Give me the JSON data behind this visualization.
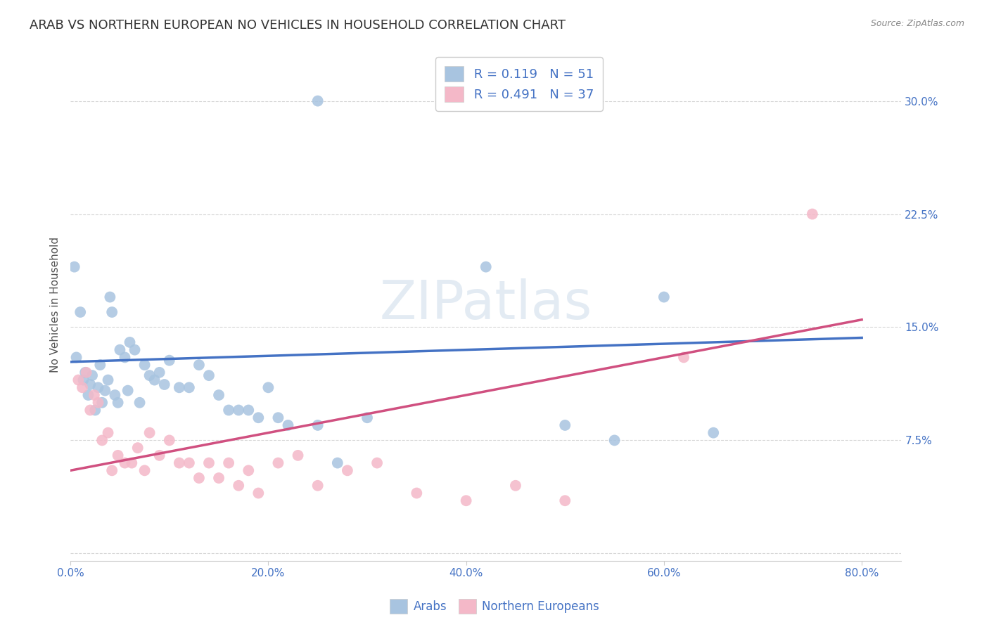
{
  "title": "ARAB VS NORTHERN EUROPEAN NO VEHICLES IN HOUSEHOLD CORRELATION CHART",
  "source": "Source: ZipAtlas.com",
  "ylabel": "No Vehicles in Household",
  "watermark": "ZIPatlas",
  "xlim": [
    0.0,
    0.84
  ],
  "ylim": [
    -0.005,
    0.335
  ],
  "xticks": [
    0.0,
    0.2,
    0.4,
    0.6,
    0.8
  ],
  "yticks": [
    0.0,
    0.075,
    0.15,
    0.225,
    0.3
  ],
  "arab_color": "#a8c4e0",
  "arab_color_line": "#4472c4",
  "northern_color": "#f4b8c8",
  "northern_color_line": "#d05080",
  "arab_R": 0.119,
  "arab_N": 51,
  "northern_R": 0.491,
  "northern_N": 37,
  "legend_label_arab": "Arabs",
  "legend_label_northern": "Northern Europeans",
  "arab_x": [
    0.004,
    0.006,
    0.01,
    0.013,
    0.015,
    0.018,
    0.02,
    0.022,
    0.025,
    0.028,
    0.03,
    0.032,
    0.035,
    0.038,
    0.04,
    0.042,
    0.045,
    0.048,
    0.05,
    0.055,
    0.058,
    0.06,
    0.065,
    0.07,
    0.075,
    0.08,
    0.085,
    0.09,
    0.095,
    0.1,
    0.11,
    0.12,
    0.13,
    0.14,
    0.15,
    0.16,
    0.17,
    0.18,
    0.19,
    0.2,
    0.21,
    0.22,
    0.25,
    0.27,
    0.3,
    0.42,
    0.5,
    0.55,
    0.6,
    0.65,
    0.25
  ],
  "arab_y": [
    0.19,
    0.13,
    0.16,
    0.115,
    0.12,
    0.105,
    0.112,
    0.118,
    0.095,
    0.11,
    0.125,
    0.1,
    0.108,
    0.115,
    0.17,
    0.16,
    0.105,
    0.1,
    0.135,
    0.13,
    0.108,
    0.14,
    0.135,
    0.1,
    0.125,
    0.118,
    0.115,
    0.12,
    0.112,
    0.128,
    0.11,
    0.11,
    0.125,
    0.118,
    0.105,
    0.095,
    0.095,
    0.095,
    0.09,
    0.11,
    0.09,
    0.085,
    0.085,
    0.06,
    0.09,
    0.19,
    0.085,
    0.075,
    0.17,
    0.08,
    0.3
  ],
  "north_x": [
    0.008,
    0.012,
    0.016,
    0.02,
    0.024,
    0.028,
    0.032,
    0.038,
    0.042,
    0.048,
    0.055,
    0.062,
    0.068,
    0.075,
    0.08,
    0.09,
    0.1,
    0.11,
    0.12,
    0.13,
    0.14,
    0.15,
    0.16,
    0.17,
    0.18,
    0.19,
    0.21,
    0.23,
    0.25,
    0.28,
    0.31,
    0.35,
    0.4,
    0.45,
    0.5,
    0.62,
    0.75
  ],
  "north_y": [
    0.115,
    0.11,
    0.12,
    0.095,
    0.105,
    0.1,
    0.075,
    0.08,
    0.055,
    0.065,
    0.06,
    0.06,
    0.07,
    0.055,
    0.08,
    0.065,
    0.075,
    0.06,
    0.06,
    0.05,
    0.06,
    0.05,
    0.06,
    0.045,
    0.055,
    0.04,
    0.06,
    0.065,
    0.045,
    0.055,
    0.06,
    0.04,
    0.035,
    0.045,
    0.035,
    0.13,
    0.225
  ],
  "background_color": "#ffffff",
  "grid_color": "#cccccc",
  "title_fontsize": 13,
  "axis_label_fontsize": 11,
  "tick_fontsize": 11,
  "arab_line_start_y": 0.127,
  "arab_line_end_y": 0.143,
  "north_line_start_y": 0.055,
  "north_line_end_y": 0.155
}
